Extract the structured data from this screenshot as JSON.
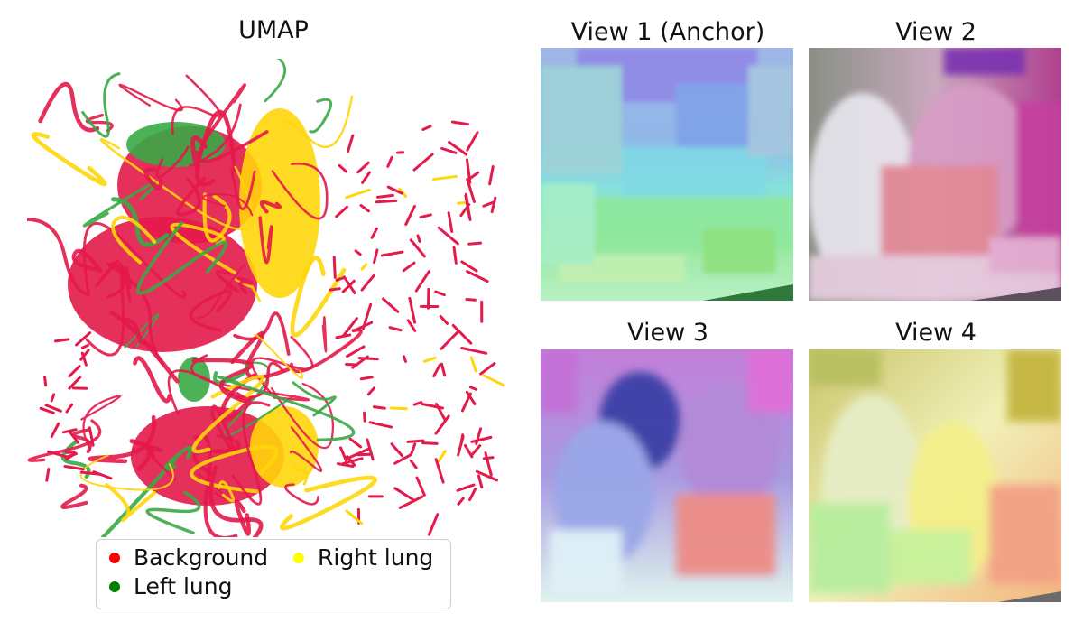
{
  "chart_data": {
    "type": "scatter",
    "title": "UMAP",
    "series": [
      {
        "name": "Background",
        "color": "#e31a4a"
      },
      {
        "name": "Left lung",
        "color": "#3aa845"
      },
      {
        "name": "Right lung",
        "color": "#ffd60a"
      }
    ]
  },
  "legend": {
    "items": [
      {
        "label": "Background",
        "color": "#ff0000"
      },
      {
        "label": "Left lung",
        "color": "#008000"
      },
      {
        "label": "Right lung",
        "color": "#ffff00"
      }
    ]
  },
  "views": [
    {
      "title": "View 1 (Anchor)"
    },
    {
      "title": "View 2"
    },
    {
      "title": "View 3"
    },
    {
      "title": "View 4"
    }
  ]
}
